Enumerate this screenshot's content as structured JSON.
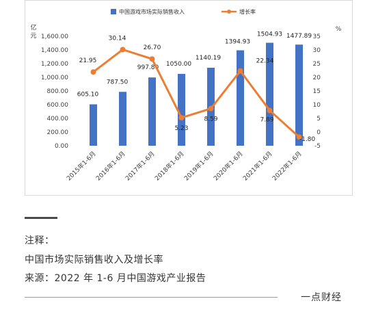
{
  "chart_data": {
    "type": "bar+line",
    "categories": [
      "2015年1-6月",
      "2016年1-6月",
      "2017年1-6月",
      "2018年1-6月",
      "2019年1-6月",
      "2020年1-6月",
      "2021年1-6月",
      "2022年1-6月"
    ],
    "series": [
      {
        "name": "中国游戏市场实际销售收入",
        "type": "bar",
        "axis": "left",
        "values": [
          605.1,
          787.5,
          997.8,
          1050.0,
          1140.19,
          1394.93,
          1504.93,
          1477.89
        ],
        "labels": [
          "605.10",
          "787.50",
          "997.80",
          "1050.00",
          "1140.19",
          "1394.93",
          "1504.93",
          "1477.89"
        ],
        "color": "#4472c4"
      },
      {
        "name": "增长率",
        "type": "line",
        "axis": "right",
        "values": [
          21.95,
          30.14,
          26.7,
          5.23,
          8.59,
          22.34,
          7.89,
          -1.8
        ],
        "labels": [
          "21.95",
          "30.14",
          "26.70",
          "5.23",
          "8.59",
          "22.34",
          "7.89",
          "-1.80"
        ],
        "color": "#ed7d31"
      }
    ],
    "left_axis": {
      "unit": "亿元",
      "min": 0,
      "max": 1600,
      "ticks": [
        "0.00",
        "200.00",
        "400.00",
        "600.00",
        "800.00",
        "1,000.00",
        "1,200.00",
        "1,400.00",
        "1,600.00"
      ]
    },
    "right_axis": {
      "unit": "%",
      "min": -5,
      "max": 35,
      "ticks": [
        "-5",
        "0",
        "5",
        "10",
        "15",
        "20",
        "25",
        "30",
        "35"
      ]
    },
    "legend_position": "top-center",
    "grid": false
  },
  "notes": {
    "title": "注释：",
    "description": "中国市场实际销售收入及增长率",
    "source": "来源：2022 年 1-6 月中国游戏产业报告"
  },
  "footer": {
    "brand": "一点财经"
  }
}
